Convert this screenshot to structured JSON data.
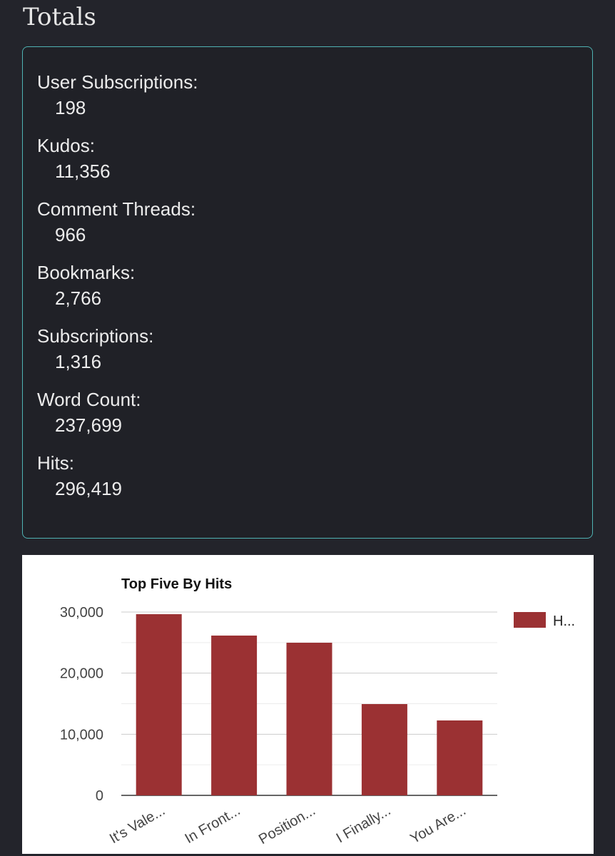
{
  "header": {
    "title": "Totals"
  },
  "stats": [
    {
      "label": "User Subscriptions:",
      "value": "198"
    },
    {
      "label": "Kudos:",
      "value": "11,356"
    },
    {
      "label": "Comment Threads:",
      "value": "966"
    },
    {
      "label": "Bookmarks:",
      "value": "2,766"
    },
    {
      "label": "Subscriptions:",
      "value": "1,316"
    },
    {
      "label": "Word Count:",
      "value": "237,699"
    },
    {
      "label": "Hits:",
      "value": "296,419"
    }
  ],
  "chart_data": {
    "type": "bar",
    "title": "Top Five By Hits",
    "categories": [
      "It's Vale...",
      "In Front...",
      "Position...",
      "I Finally...",
      "You Are..."
    ],
    "series": [
      {
        "name": "H...",
        "color": "#9b3133",
        "values": [
          29650,
          26150,
          24980,
          14940,
          12260
        ]
      }
    ],
    "ylim": [
      0,
      30000
    ],
    "yticks": [
      0,
      {
        "value": 10000,
        "label": "10,000"
      },
      {
        "value": 20000,
        "label": "20,000"
      },
      {
        "value": 30000,
        "label": "30,000"
      }
    ],
    "minor_yticks": [
      5000,
      15000,
      25000
    ],
    "grid": true,
    "legend": "right"
  }
}
